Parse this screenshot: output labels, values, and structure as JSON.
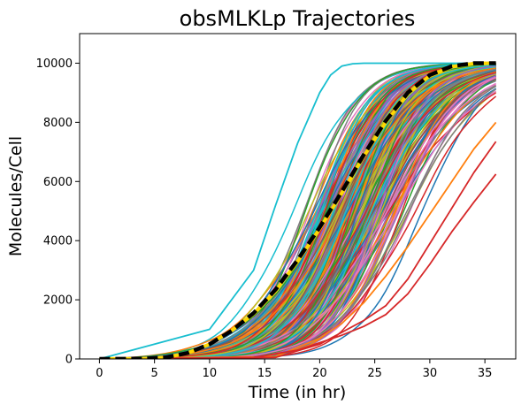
{
  "chart_data": {
    "type": "line",
    "title": "obsMLKLp Trajectories",
    "xlabel": "Time (in hr)",
    "ylabel": "Molecules/Cell",
    "xlim": [
      -1.8,
      37.8
    ],
    "ylim": [
      0,
      11000
    ],
    "xticks": [
      0,
      5,
      10,
      15,
      20,
      25,
      30,
      35
    ],
    "yticks": [
      0,
      2000,
      4000,
      6000,
      8000,
      10000
    ],
    "grid": false,
    "x_range": [
      0,
      36
    ],
    "plateau": 10000,
    "trajectory_count": 300,
    "palette": [
      "#1f77b4",
      "#ff7f0e",
      "#2ca02c",
      "#d62728",
      "#9467bd",
      "#8c564b",
      "#e377c2",
      "#7f7f7f",
      "#bcbd22",
      "#17becf"
    ],
    "series": [
      {
        "id": "mean",
        "color": "#000000",
        "style": "dashed",
        "x": [
          0,
          4,
          6,
          8,
          10,
          12,
          14,
          16,
          18,
          20,
          22,
          24,
          26,
          28,
          30,
          32,
          34,
          36
        ],
        "values": [
          0,
          10,
          50,
          200,
          500,
          950,
          1550,
          2350,
          3350,
          4450,
          5650,
          6900,
          8050,
          9000,
          9600,
          9900,
          10000,
          10000
        ]
      },
      {
        "id": "median",
        "color": "#ffd700",
        "style": "solid",
        "x": [
          0,
          4,
          6,
          8,
          10,
          12,
          14,
          16,
          18,
          20,
          22,
          24,
          26,
          28,
          30,
          32,
          34,
          36
        ],
        "values": [
          0,
          10,
          50,
          200,
          500,
          950,
          1520,
          2300,
          3300,
          4400,
          5600,
          6850,
          8000,
          8950,
          9580,
          9880,
          9990,
          10000
        ]
      },
      {
        "id": "extreme-early",
        "color": "#17becf",
        "style": "solid",
        "x": [
          0,
          10,
          14,
          16,
          18,
          20,
          21,
          22,
          23,
          24,
          36
        ],
        "values": [
          0,
          1000,
          3000,
          5200,
          7300,
          9000,
          9600,
          9900,
          9980,
          10000,
          10000
        ]
      },
      {
        "id": "extreme-late-1",
        "color": "#d62728",
        "style": "solid",
        "x": [
          0,
          14,
          18,
          20,
          22,
          24,
          26,
          28,
          30,
          32,
          34,
          36
        ],
        "values": [
          0,
          50,
          300,
          550,
          800,
          1100,
          1500,
          2200,
          3200,
          4300,
          5300,
          6250
        ]
      },
      {
        "id": "extreme-late-2",
        "color": "#d62728",
        "style": "solid",
        "x": [
          0,
          16,
          20,
          22,
          24,
          26,
          28,
          30,
          32,
          34,
          36
        ],
        "values": [
          0,
          50,
          500,
          900,
          1300,
          1800,
          2700,
          3900,
          5100,
          6300,
          7350
        ]
      },
      {
        "id": "extreme-late-3",
        "color": "#ff7f0e",
        "style": "solid",
        "x": [
          0,
          16,
          20,
          22,
          24,
          26,
          28,
          30,
          32,
          34,
          36
        ],
        "values": [
          0,
          80,
          700,
          1200,
          1900,
          2800,
          3800,
          4900,
          6000,
          7100,
          8000
        ]
      }
    ]
  }
}
